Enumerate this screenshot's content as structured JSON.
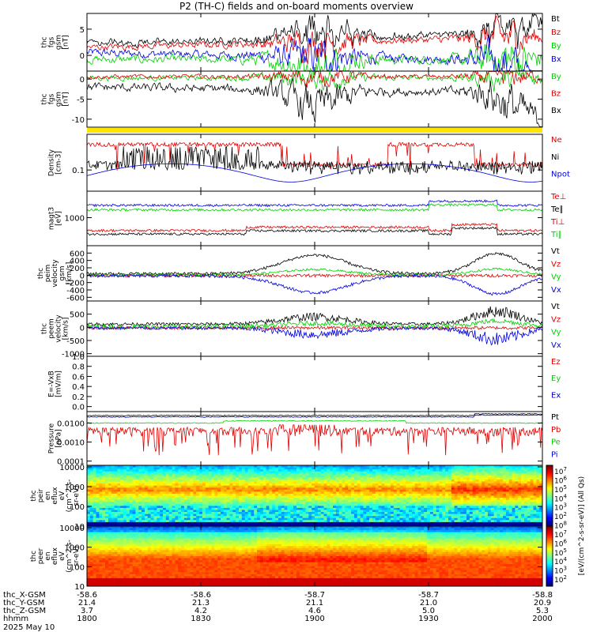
{
  "title": "P2 (TH-C) fields and on-board moments overview",
  "colors": {
    "black": "#000000",
    "red": "#e00000",
    "green": "#00d000",
    "blue": "#0000e0",
    "yellow": "#ffe600"
  },
  "chart_data": [
    {
      "type": "line",
      "panel": "fgs_gsm",
      "ylabel": [
        "thc",
        "fgs",
        "gsm",
        "[nT]"
      ],
      "ylim": [
        -3,
        8
      ],
      "yticks": [
        {
          "v": 5,
          "t": "5"
        },
        {
          "v": 0,
          "t": "0"
        }
      ],
      "series": [
        {
          "name": "Bt",
          "color": "black"
        },
        {
          "name": "Bz",
          "color": "red"
        },
        {
          "name": "By",
          "color": "green"
        },
        {
          "name": "Bx",
          "color": "blue"
        }
      ]
    },
    {
      "type": "line",
      "panel": "fgs_gsm_mvp",
      "ylabel": [
        "thc",
        "fgs",
        "gsm",
        "[nT]"
      ],
      "ylim": [
        -12,
        2
      ],
      "yticks": [
        {
          "v": 0,
          "t": "0"
        },
        {
          "v": -5,
          "t": "-5"
        },
        {
          "v": -10,
          "t": "-10"
        }
      ],
      "series": [
        {
          "name": "By",
          "color": "green"
        },
        {
          "name": "Bz",
          "color": "red"
        },
        {
          "name": "Bx",
          "color": "black"
        }
      ]
    },
    {
      "type": "line",
      "panel": "density",
      "ylabel": [
        "Density",
        "[cm-3]"
      ],
      "log": true,
      "yticks": [
        {
          "v": 0.1,
          "t": "0.1"
        }
      ],
      "series": [
        {
          "name": "Ne",
          "color": "red"
        },
        {
          "name": "Ni",
          "color": "black"
        },
        {
          "name": "Npot",
          "color": "blue"
        }
      ]
    },
    {
      "type": "line",
      "panel": "temperature",
      "ylabel": [
        "magt3",
        "[eV]"
      ],
      "log": true,
      "yticks": [
        {
          "v": 1000,
          "t": "1000"
        }
      ],
      "series": [
        {
          "name": "Te⊥",
          "color": "red"
        },
        {
          "name": "Te∥",
          "color": "black"
        },
        {
          "name": "Ti⊥",
          "color": "red"
        },
        {
          "name": "Ti∥",
          "color": "green"
        }
      ]
    },
    {
      "type": "line",
      "panel": "peim_velocity",
      "ylabel": [
        "thc",
        "peim",
        "velocity",
        "gsm",
        "[km/s]"
      ],
      "ylim": [
        -700,
        800
      ],
      "yticks": [
        {
          "v": 600,
          "t": "600"
        },
        {
          "v": 400,
          "t": "400"
        },
        {
          "v": 200,
          "t": "200"
        },
        {
          "v": 0,
          "t": "0"
        },
        {
          "v": -200,
          "t": "-200"
        },
        {
          "v": -400,
          "t": "-400"
        },
        {
          "v": -600,
          "t": "-600"
        }
      ],
      "series": [
        {
          "name": "Vt",
          "color": "black"
        },
        {
          "name": "Vz",
          "color": "red"
        },
        {
          "name": "Vy",
          "color": "green"
        },
        {
          "name": "Vx",
          "color": "blue"
        }
      ]
    },
    {
      "type": "line",
      "panel": "peem_velocity",
      "ylabel": [
        "thc",
        "peem",
        "velocity",
        "[km/s]"
      ],
      "ylim": [
        -1100,
        1000
      ],
      "yticks": [
        {
          "v": 500,
          "t": "500"
        },
        {
          "v": 0,
          "t": "0"
        },
        {
          "v": -500,
          "t": "-500"
        },
        {
          "v": -1000,
          "t": "-1000"
        }
      ],
      "series": [
        {
          "name": "Vt",
          "color": "black"
        },
        {
          "name": "Vz",
          "color": "red"
        },
        {
          "name": "Vy",
          "color": "green"
        },
        {
          "name": "Vx",
          "color": "blue"
        }
      ]
    },
    {
      "type": "line",
      "panel": "efield",
      "ylabel": [
        "E=-VxB",
        "[mV/m]"
      ],
      "ylim": [
        -0.1,
        1.0
      ],
      "yticks": [
        {
          "v": 1.0,
          "t": "1.0"
        },
        {
          "v": 0.8,
          "t": "0.8"
        },
        {
          "v": 0.6,
          "t": "0.6"
        },
        {
          "v": 0.4,
          "t": "0.4"
        },
        {
          "v": 0.2,
          "t": "0.2"
        },
        {
          "v": 0.0,
          "t": "0.0"
        }
      ],
      "series": [
        {
          "name": "Ez",
          "color": "red"
        },
        {
          "name": "Ey",
          "color": "green"
        },
        {
          "name": "Ex",
          "color": "blue"
        }
      ]
    },
    {
      "type": "line",
      "panel": "pressure",
      "ylabel": [
        "Pressure",
        "[nPa]"
      ],
      "log": true,
      "yticks": [
        {
          "v": 0.01,
          "t": "0.0100"
        },
        {
          "v": 0.001,
          "t": "0.0010"
        },
        {
          "v": 0.0001,
          "t": "0.0001"
        }
      ],
      "series": [
        {
          "name": "Pt",
          "color": "black"
        },
        {
          "name": "Pb",
          "color": "red"
        },
        {
          "name": "Pe",
          "color": "green"
        },
        {
          "name": "Pi",
          "color": "blue"
        }
      ]
    },
    {
      "type": "heatmap",
      "panel": "peir_spec",
      "ylabel": [
        "thc",
        "peir",
        "en",
        "eflux",
        "eV",
        "(cm^2-s-",
        "sr-eV)"
      ],
      "log": true,
      "yticks": [
        {
          "v": 10000,
          "t": "10000"
        },
        {
          "v": 1000,
          "t": "1000"
        },
        {
          "v": 100,
          "t": "100"
        },
        {
          "v": 10,
          "t": "10"
        }
      ]
    },
    {
      "type": "heatmap",
      "panel": "peer_spec",
      "ylabel": [
        "thc",
        "peer",
        "en",
        "eflux",
        "eV",
        "(cm^2-s-",
        "sr-eV)"
      ],
      "log": true,
      "yticks": [
        {
          "v": 10000,
          "t": "10000"
        },
        {
          "v": 1000,
          "t": "1000"
        },
        {
          "v": 100,
          "t": "100"
        },
        {
          "v": 10,
          "t": "10"
        }
      ]
    }
  ],
  "colorbar": {
    "label": "[eV/(cm^2-s-sr-eV)] (All Qs)",
    "ticks": [
      "10^7",
      "10^6",
      "10^5",
      "10^4",
      "10^3",
      "10^2",
      "10^8",
      "10^7",
      "10^6",
      "10^5",
      "10^4",
      "10^3",
      "10^2"
    ]
  },
  "xaxis": {
    "row_labels": [
      "thc_X-GSM",
      "thc_Y-GSM",
      "thc_Z-GSM",
      "hhmm",
      "2025 May 10"
    ],
    "ticks": [
      {
        "x": "-58.6",
        "y": "21.4",
        "z": "3.7",
        "t": "1800"
      },
      {
        "x": "-58.6",
        "y": "21.3",
        "z": "4.2",
        "t": "1830"
      },
      {
        "x": "-58.7",
        "y": "21.1",
        "z": "4.6",
        "t": "1900"
      },
      {
        "x": "-58.7",
        "y": "21.0",
        "z": "5.0",
        "t": "1930"
      },
      {
        "x": "-58.8",
        "y": "20.9",
        "z": "5.3",
        "t": "2000"
      }
    ]
  }
}
